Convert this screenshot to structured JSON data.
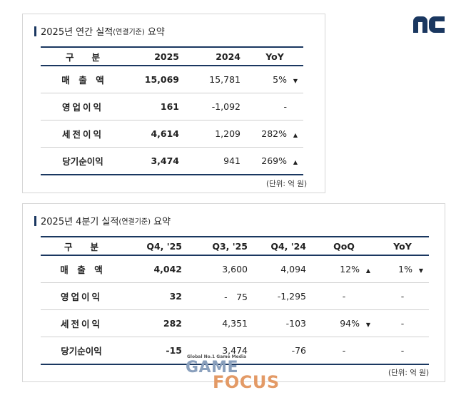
{
  "annual": {
    "title_main": "2025년 연간 실적",
    "title_small": "(연결기준)",
    "title_end": " 요약",
    "headers": [
      "구　　분",
      "2025",
      "2024",
      "YoY"
    ],
    "rows": [
      {
        "label": "매　출　액",
        "v2025": "15,069",
        "v2024": "15,781",
        "yoy": "5%",
        "dir": "▼"
      },
      {
        "label": "영업이익",
        "v2025": "161",
        "v2024": "-1,092",
        "yoy": "-",
        "dir": ""
      },
      {
        "label": "세전이익",
        "v2025": "4,614",
        "v2024": "1,209",
        "yoy": "282%",
        "dir": "▲"
      },
      {
        "label": "당기순이익",
        "v2025": "3,474",
        "v2024": "941",
        "yoy": "269%",
        "dir": "▲"
      }
    ],
    "unit": "(단위: 억 원)"
  },
  "quarterly": {
    "title_main": "2025년 4분기 실적",
    "title_small": "(연결기준)",
    "title_end": " 요약",
    "headers": [
      "구　　분",
      "Q4, '25",
      "Q3, '25",
      "Q4, '24",
      "QoQ",
      "YoY"
    ],
    "rows": [
      {
        "label": "매　출　액",
        "q4_25": "4,042",
        "q3_25": "3,600",
        "q4_24": "4,094",
        "qoq": "12%",
        "qoq_dir": "▲",
        "yoy": "1%",
        "yoy_dir": "▼"
      },
      {
        "label": "영업이익",
        "q4_25": "32",
        "q3_25": "-　75",
        "q4_24": "-1,295",
        "qoq": "-",
        "qoq_dir": "",
        "yoy": "-",
        "yoy_dir": ""
      },
      {
        "label": "세전이익",
        "q4_25": "282",
        "q3_25": "4,351",
        "q4_24": "-103",
        "qoq": "94%",
        "qoq_dir": "▼",
        "yoy": "-",
        "yoy_dir": ""
      },
      {
        "label": "당기순이익",
        "q4_25": "-15",
        "q3_25": "3,474",
        "q4_24": "-76",
        "qoq": "-",
        "qoq_dir": "",
        "yoy": "-",
        "yoy_dir": ""
      }
    ],
    "unit": "(단위: 억 원)"
  },
  "logo": {
    "text": "nc",
    "color": "#1a3760"
  },
  "watermark": {
    "tagline": "Global No.1 Game Media",
    "line1": "GAME",
    "line2": "FOCUS"
  }
}
